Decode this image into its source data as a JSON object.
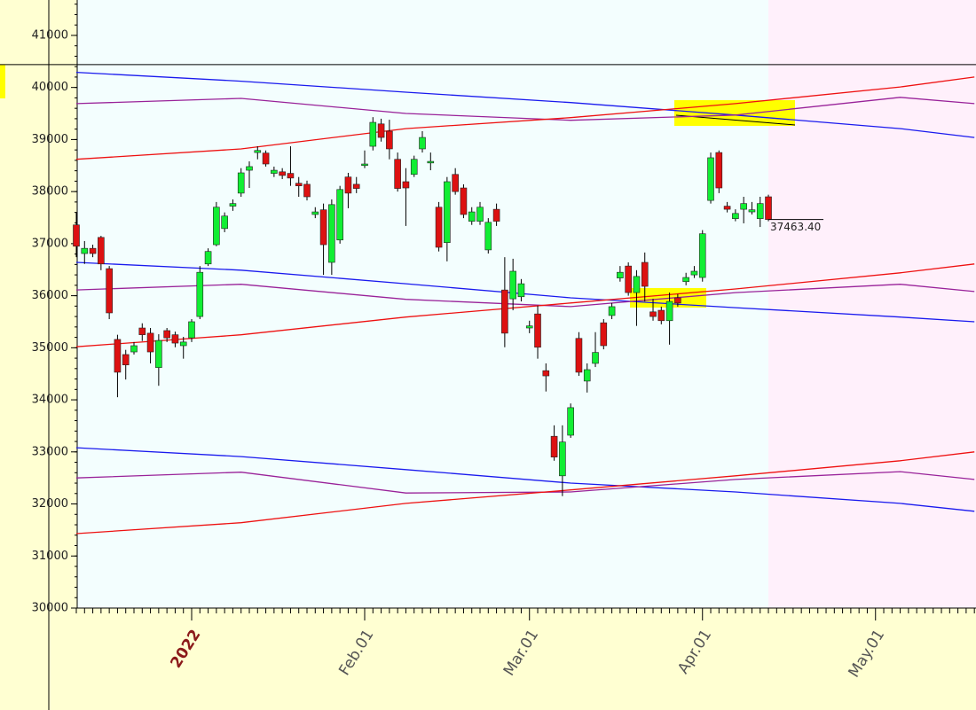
{
  "chart_data": {
    "type": "candlestick",
    "categories": [
      null,
      null,
      null,
      null,
      null,
      null,
      null,
      null,
      null,
      null,
      null,
      null,
      null,
      null,
      "2022",
      null,
      null,
      null,
      null,
      null,
      null,
      null,
      null,
      null,
      null,
      null,
      null,
      null,
      null,
      null,
      null,
      null,
      null,
      null,
      null,
      "Feb.01",
      null,
      null,
      null,
      null,
      null,
      null,
      null,
      null,
      null,
      null,
      null,
      null,
      null,
      null,
      null,
      null,
      null,
      null,
      null,
      "Mar.01",
      null,
      null,
      null,
      null,
      null,
      null,
      null,
      null,
      null,
      null,
      null,
      null,
      null,
      null,
      null,
      null,
      null,
      null,
      null,
      null,
      "Apr.01",
      null,
      null,
      null,
      null,
      null,
      null,
      null,
      null,
      null,
      null,
      null,
      null,
      null,
      null,
      null,
      null,
      null,
      null,
      null,
      null,
      "May.01",
      null,
      null,
      null,
      null,
      null,
      null,
      null,
      null,
      null,
      null,
      null,
      null
    ],
    "open": [
      37360,
      36810,
      36910,
      37120,
      36520,
      35160,
      34870,
      34920,
      35380,
      35280,
      34620,
      35330,
      35250,
      35040,
      35190,
      35600,
      36610,
      36980,
      37290,
      37720,
      37970,
      38410,
      38750,
      38740,
      38350,
      38380,
      38350,
      38160,
      38140,
      37560,
      37650,
      36640,
      37070,
      38280,
      38140,
      38500,
      38870,
      39300,
      39160,
      38620,
      38190,
      38330,
      38820,
      38550,
      37700,
      37020,
      38330,
      38070,
      37430,
      37430,
      36880,
      37660,
      36110,
      35940,
      35980,
      35380,
      35650,
      34560,
      33300,
      32540,
      33320,
      35180,
      34360,
      34700,
      35480,
      35620,
      36340,
      36570,
      36060,
      36640,
      35690,
      35720,
      35520,
      35960,
      36270,
      36400,
      36350,
      37830,
      38750,
      37720,
      37480,
      37660,
      37610,
      37480,
      37900,
      null,
      null,
      null,
      null,
      null,
      null,
      null,
      null,
      null,
      null,
      null,
      null,
      null,
      null,
      null,
      null,
      null,
      null,
      null,
      null,
      null,
      null,
      null,
      null,
      null
    ],
    "high": [
      37600,
      37050,
      36980,
      37150,
      36570,
      35250,
      34960,
      35110,
      35470,
      35380,
      35260,
      35380,
      35310,
      35210,
      35550,
      36570,
      36910,
      37800,
      37600,
      37850,
      38450,
      38580,
      38870,
      38790,
      38480,
      38450,
      38870,
      38280,
      38210,
      37700,
      37770,
      37850,
      38110,
      38360,
      38280,
      38790,
      39430,
      39400,
      39380,
      38750,
      38450,
      38690,
      39160,
      38750,
      37800,
      38280,
      38450,
      38140,
      37700,
      37800,
      37490,
      37770,
      36740,
      36710,
      36320,
      35520,
      35810,
      34700,
      33510,
      33510,
      33930,
      35300,
      34700,
      35300,
      35550,
      35860,
      36570,
      36640,
      36490,
      36830,
      35940,
      35790,
      36060,
      36030,
      36440,
      36570,
      37260,
      38750,
      38790,
      37800,
      37660,
      37900,
      37800,
      37900,
      37940,
      null,
      null,
      null,
      null,
      null,
      null,
      null,
      null,
      null,
      null,
      null,
      null,
      null,
      null,
      null,
      null,
      null,
      null,
      null,
      null,
      null,
      null,
      null,
      null,
      null
    ],
    "low": [
      36740,
      36610,
      36740,
      36490,
      35550,
      34050,
      34390,
      34870,
      35130,
      34700,
      34270,
      35110,
      35010,
      34790,
      35110,
      35550,
      36570,
      36950,
      37220,
      37630,
      37900,
      38070,
      38620,
      38480,
      38280,
      38240,
      38110,
      37900,
      37830,
      37490,
      36400,
      36400,
      37000,
      37680,
      37970,
      38450,
      38790,
      38960,
      38620,
      38000,
      37340,
      38280,
      38750,
      38410,
      36850,
      36660,
      37940,
      37490,
      37360,
      37360,
      36810,
      37340,
      35010,
      35720,
      35890,
      35280,
      34790,
      34160,
      32830,
      32150,
      33270,
      34460,
      34140,
      34630,
      34970,
      35550,
      36270,
      36000,
      35420,
      35890,
      35520,
      35450,
      35060,
      35790,
      36200,
      36340,
      36270,
      37770,
      37970,
      37600,
      37430,
      37390,
      37560,
      37320,
      37430,
      null,
      null,
      null,
      null,
      null,
      null,
      null,
      null,
      null,
      null,
      null,
      null,
      null,
      null,
      null,
      null,
      null,
      null,
      null,
      null,
      null,
      null,
      null,
      null,
      null
    ],
    "close": [
      36950,
      36910,
      36810,
      36610,
      35670,
      34530,
      34670,
      35040,
      35250,
      34920,
      35140,
      35190,
      35090,
      35110,
      35500,
      36450,
      36850,
      37700,
      37530,
      37770,
      38360,
      38480,
      38790,
      38530,
      38410,
      38310,
      38260,
      38110,
      37900,
      37610,
      36980,
      37750,
      38040,
      37970,
      38060,
      38530,
      39330,
      39040,
      38820,
      38060,
      38070,
      38620,
      39040,
      38580,
      36930,
      38190,
      38000,
      37560,
      37610,
      37700,
      37410,
      37430,
      35280,
      36470,
      36230,
      35420,
      35010,
      34460,
      32900,
      33190,
      33850,
      34530,
      34580,
      34910,
      35040,
      35790,
      36450,
      36060,
      36370,
      36180,
      35600,
      35520,
      35890,
      35860,
      36350,
      36470,
      37190,
      38650,
      38070,
      37660,
      37580,
      37770,
      37650,
      37770,
      37463.4,
      null,
      null,
      null,
      null,
      null,
      null,
      null,
      null,
      null,
      null,
      null,
      null,
      null,
      null,
      null,
      null,
      null,
      null,
      null,
      null,
      null,
      null,
      null,
      null,
      null
    ],
    "last_close_label": "37463.40",
    "up_color": "#11ee33",
    "down_color": "#dd1111",
    "ylim": [
      30000,
      41680
    ],
    "yticks": [
      30000,
      31000,
      32000,
      33000,
      34000,
      35000,
      36000,
      37000,
      38000,
      39000,
      40000,
      41000
    ],
    "hline": 40440,
    "bands": [
      {
        "color": "#1a1aee",
        "x": [
          0,
          20,
          40,
          60,
          80,
          100,
          109
        ],
        "values": [
          40290,
          40120,
          39910,
          39710,
          39470,
          39210,
          39040
        ]
      },
      {
        "color": "#992299",
        "x": [
          0,
          20,
          40,
          60,
          80,
          100,
          109
        ],
        "values": [
          39690,
          39790,
          39500,
          39370,
          39470,
          39810,
          39690
        ]
      },
      {
        "color": "#ee1111",
        "x": [
          0,
          20,
          40,
          60,
          80,
          100,
          109
        ],
        "values": [
          38620,
          38820,
          39210,
          39420,
          39690,
          40010,
          40200
        ]
      },
      {
        "color": "#1a1aee",
        "x": [
          0,
          20,
          40,
          60,
          80,
          100,
          109
        ],
        "values": [
          36640,
          36490,
          36230,
          35960,
          35770,
          35590,
          35500
        ]
      },
      {
        "color": "#992299",
        "x": [
          0,
          20,
          40,
          60,
          80,
          100,
          109
        ],
        "values": [
          36110,
          36220,
          35930,
          35790,
          36060,
          36220,
          36080
        ]
      },
      {
        "color": "#ee1111",
        "x": [
          0,
          20,
          40,
          60,
          80,
          100,
          109
        ],
        "values": [
          35020,
          35250,
          35590,
          35860,
          36130,
          36440,
          36610
        ]
      },
      {
        "color": "#1a1aee",
        "x": [
          0,
          20,
          40,
          60,
          80,
          100,
          109
        ],
        "values": [
          33080,
          32910,
          32660,
          32400,
          32230,
          32010,
          31860
        ]
      },
      {
        "color": "#992299",
        "x": [
          0,
          20,
          40,
          60,
          80,
          100,
          109
        ],
        "values": [
          32500,
          32610,
          32210,
          32230,
          32470,
          32620,
          32470
        ]
      },
      {
        "color": "#ee1111",
        "x": [
          0,
          20,
          40,
          60,
          80,
          100,
          109
        ],
        "values": [
          31430,
          31640,
          32010,
          32270,
          32540,
          32830,
          33000
        ]
      }
    ]
  }
}
